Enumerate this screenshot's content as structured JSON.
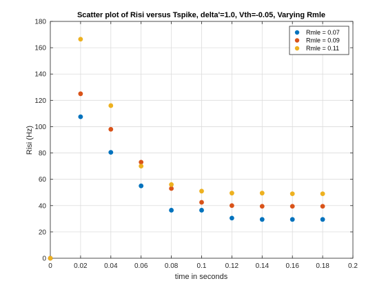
{
  "chart_data": {
    "type": "scatter",
    "title": "Scatter plot of Risi versus Tspike, delta'=1.0, Vth=-0.05, Varying Rmle",
    "xlabel": "time in seconds",
    "ylabel": "Risi (Hz)",
    "xlim": [
      0,
      0.2
    ],
    "ylim": [
      0,
      180
    ],
    "xticks": [
      "0",
      "0.02",
      "0.04",
      "0.06",
      "0.08",
      "0.1",
      "0.12",
      "0.14",
      "0.16",
      "0.18",
      "0.2"
    ],
    "yticks": [
      "0",
      "20",
      "40",
      "60",
      "80",
      "100",
      "120",
      "140",
      "160",
      "180"
    ],
    "grid": true,
    "legend_position": "top-right",
    "x": [
      0,
      0.02,
      0.04,
      0.06,
      0.08,
      0.1,
      0.12,
      0.14,
      0.16,
      0.18
    ],
    "series": [
      {
        "name": "Rmle = 0.07",
        "color": "#0072bd",
        "values": [
          0,
          107.5,
          80.5,
          55,
          36.5,
          36.5,
          30.5,
          29.5,
          29.5,
          29.5
        ]
      },
      {
        "name": "Rmle = 0.09",
        "color": "#d95319",
        "values": [
          0,
          125,
          98,
          73,
          53,
          42.5,
          40,
          39.5,
          39.5,
          39.5
        ]
      },
      {
        "name": "Rmle = 0.11",
        "color": "#edb120",
        "values": [
          0,
          166.5,
          116,
          70,
          56,
          51,
          49.5,
          49.5,
          49,
          49
        ]
      }
    ]
  }
}
